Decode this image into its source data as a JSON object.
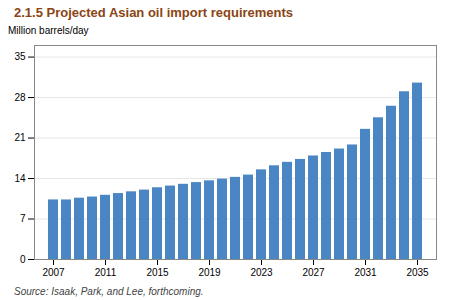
{
  "chart_data": {
    "type": "bar",
    "title": "2.1.5  Projected Asian oil import requirements",
    "ylabel": "Million barrels/day",
    "source": "Source: Isaak, Park, and Lee, forthcoming.",
    "x": [
      2007,
      2008,
      2009,
      2010,
      2011,
      2012,
      2013,
      2014,
      2015,
      2016,
      2017,
      2018,
      2019,
      2020,
      2021,
      2022,
      2023,
      2024,
      2025,
      2026,
      2027,
      2028,
      2029,
      2030,
      2031,
      2032,
      2033,
      2034,
      2035
    ],
    "values": [
      10.3,
      10.3,
      10.6,
      10.8,
      11.1,
      11.4,
      11.7,
      12.0,
      12.4,
      12.7,
      13.0,
      13.3,
      13.6,
      13.9,
      14.2,
      14.6,
      15.5,
      16.2,
      16.8,
      17.3,
      17.9,
      18.5,
      19.1,
      19.8,
      22.5,
      24.5,
      26.5,
      29.0,
      30.5
    ],
    "color": "#4a86c3",
    "ylim": [
      0,
      37
    ],
    "yticks": [
      0,
      7,
      14,
      21,
      28,
      35
    ],
    "xticks": [
      2007,
      2011,
      2015,
      2019,
      2023,
      2027,
      2031,
      2035
    ],
    "grid": true
  }
}
